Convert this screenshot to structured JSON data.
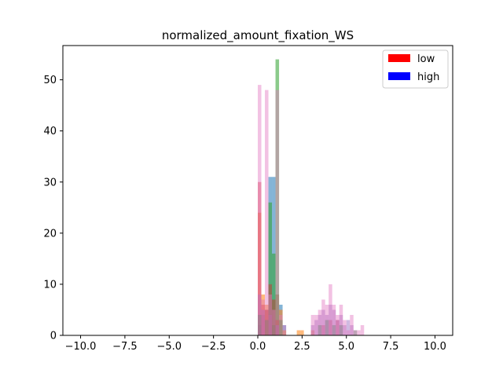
{
  "chart_data": {
    "type": "bar",
    "subtype": "overlaid-histogram",
    "title": "normalized_amount_fixation_WS",
    "xlabel": "",
    "ylabel": "",
    "xlim": [
      -11.0,
      11.0
    ],
    "ylim": [
      0,
      56.7
    ],
    "x_ticks": [
      -10.0,
      -7.5,
      -5.0,
      -2.5,
      0.0,
      2.5,
      5.0,
      7.5,
      10.0
    ],
    "x_tick_labels": [
      "−10.0",
      "−7.5",
      "−5.0",
      "−2.5",
      "0.0",
      "2.5",
      "5.0",
      "7.5",
      "10.0"
    ],
    "y_ticks": [
      0,
      10,
      20,
      30,
      40,
      50
    ],
    "y_tick_labels": [
      "0",
      "10",
      "20",
      "30",
      "40",
      "50"
    ],
    "grid": false,
    "bin_width": 0.2,
    "legend": {
      "placement": "top-right",
      "entries": [
        {
          "label": "low",
          "color": "#ff0000"
        },
        {
          "label": "high",
          "color": "#0000ff"
        }
      ]
    },
    "series": [
      {
        "color": "#1f77b4",
        "opacity": 0.55,
        "bins": [
          {
            "x": 0.0,
            "value": 2
          },
          {
            "x": 0.2,
            "value": 4
          },
          {
            "x": 0.4,
            "value": 5
          },
          {
            "x": 0.6,
            "value": 31
          },
          {
            "x": 0.8,
            "value": 31
          },
          {
            "x": 1.0,
            "value": 8
          },
          {
            "x": 1.2,
            "value": 6
          },
          {
            "x": 1.4,
            "value": 2
          }
        ]
      },
      {
        "color": "#ff7f0e",
        "opacity": 0.55,
        "bins": [
          {
            "x": 0.0,
            "value": 24
          },
          {
            "x": 0.2,
            "value": 8
          },
          {
            "x": 0.4,
            "value": 6
          },
          {
            "x": 0.6,
            "value": 4
          },
          {
            "x": 0.8,
            "value": 2
          },
          {
            "x": 1.0,
            "value": 8
          },
          {
            "x": 1.2,
            "value": 5
          },
          {
            "x": 1.4,
            "value": 1
          },
          {
            "x": 2.2,
            "value": 1
          },
          {
            "x": 2.4,
            "value": 1
          },
          {
            "x": 3.0,
            "value": 1
          }
        ]
      },
      {
        "color": "#2ca02c",
        "opacity": 0.55,
        "bins": [
          {
            "x": 0.6,
            "value": 26
          },
          {
            "x": 0.8,
            "value": 16
          },
          {
            "x": 1.0,
            "value": 54
          },
          {
            "x": 1.2,
            "value": 3
          }
        ]
      },
      {
        "color": "#d62728",
        "opacity": 0.45,
        "bins": [
          {
            "x": 0.0,
            "value": 30
          },
          {
            "x": 0.2,
            "value": 6
          },
          {
            "x": 0.4,
            "value": 5
          },
          {
            "x": 0.6,
            "value": 10
          },
          {
            "x": 0.8,
            "value": 7
          },
          {
            "x": 1.0,
            "value": 3
          },
          {
            "x": 3.6,
            "value": 2
          },
          {
            "x": 4.0,
            "value": 3
          },
          {
            "x": 4.4,
            "value": 3
          }
        ]
      },
      {
        "color": "#9467bd",
        "opacity": 0.45,
        "bins": [
          {
            "x": 0.0,
            "value": 8
          },
          {
            "x": 0.2,
            "value": 5
          },
          {
            "x": 0.6,
            "value": 4
          },
          {
            "x": 1.0,
            "value": 2
          },
          {
            "x": 3.0,
            "value": 2
          },
          {
            "x": 3.2,
            "value": 3
          },
          {
            "x": 3.4,
            "value": 4
          },
          {
            "x": 3.6,
            "value": 5
          },
          {
            "x": 3.8,
            "value": 4
          },
          {
            "x": 4.0,
            "value": 6
          },
          {
            "x": 4.2,
            "value": 5
          },
          {
            "x": 4.4,
            "value": 3
          },
          {
            "x": 4.6,
            "value": 4
          },
          {
            "x": 4.8,
            "value": 2
          },
          {
            "x": 5.0,
            "value": 3
          },
          {
            "x": 5.2,
            "value": 2
          }
        ]
      },
      {
        "color": "#e377c2",
        "opacity": 0.45,
        "bins": [
          {
            "x": 0.0,
            "value": 49
          },
          {
            "x": 0.2,
            "value": 7
          },
          {
            "x": 0.4,
            "value": 48
          },
          {
            "x": 0.6,
            "value": 8
          },
          {
            "x": 0.8,
            "value": 5
          },
          {
            "x": 1.0,
            "value": 48
          },
          {
            "x": 1.2,
            "value": 4
          },
          {
            "x": 1.4,
            "value": 2
          },
          {
            "x": 3.0,
            "value": 4
          },
          {
            "x": 3.2,
            "value": 4
          },
          {
            "x": 3.4,
            "value": 5
          },
          {
            "x": 3.6,
            "value": 7
          },
          {
            "x": 3.8,
            "value": 6
          },
          {
            "x": 4.0,
            "value": 10
          },
          {
            "x": 4.2,
            "value": 6
          },
          {
            "x": 4.4,
            "value": 4
          },
          {
            "x": 4.6,
            "value": 6
          },
          {
            "x": 4.8,
            "value": 3
          },
          {
            "x": 5.0,
            "value": 1
          },
          {
            "x": 5.2,
            "value": 4
          },
          {
            "x": 5.4,
            "value": 1
          },
          {
            "x": 5.6,
            "value": 1
          },
          {
            "x": 5.8,
            "value": 2
          }
        ]
      },
      {
        "color": "#7f7f7f",
        "opacity": 0.45,
        "bins": [
          {
            "x": 0.0,
            "value": 4
          },
          {
            "x": 0.4,
            "value": 3
          },
          {
            "x": 0.8,
            "value": 2
          },
          {
            "x": 3.4,
            "value": 2
          },
          {
            "x": 3.8,
            "value": 3
          },
          {
            "x": 4.2,
            "value": 2
          },
          {
            "x": 4.6,
            "value": 2
          },
          {
            "x": 5.4,
            "value": 1
          }
        ]
      }
    ]
  }
}
